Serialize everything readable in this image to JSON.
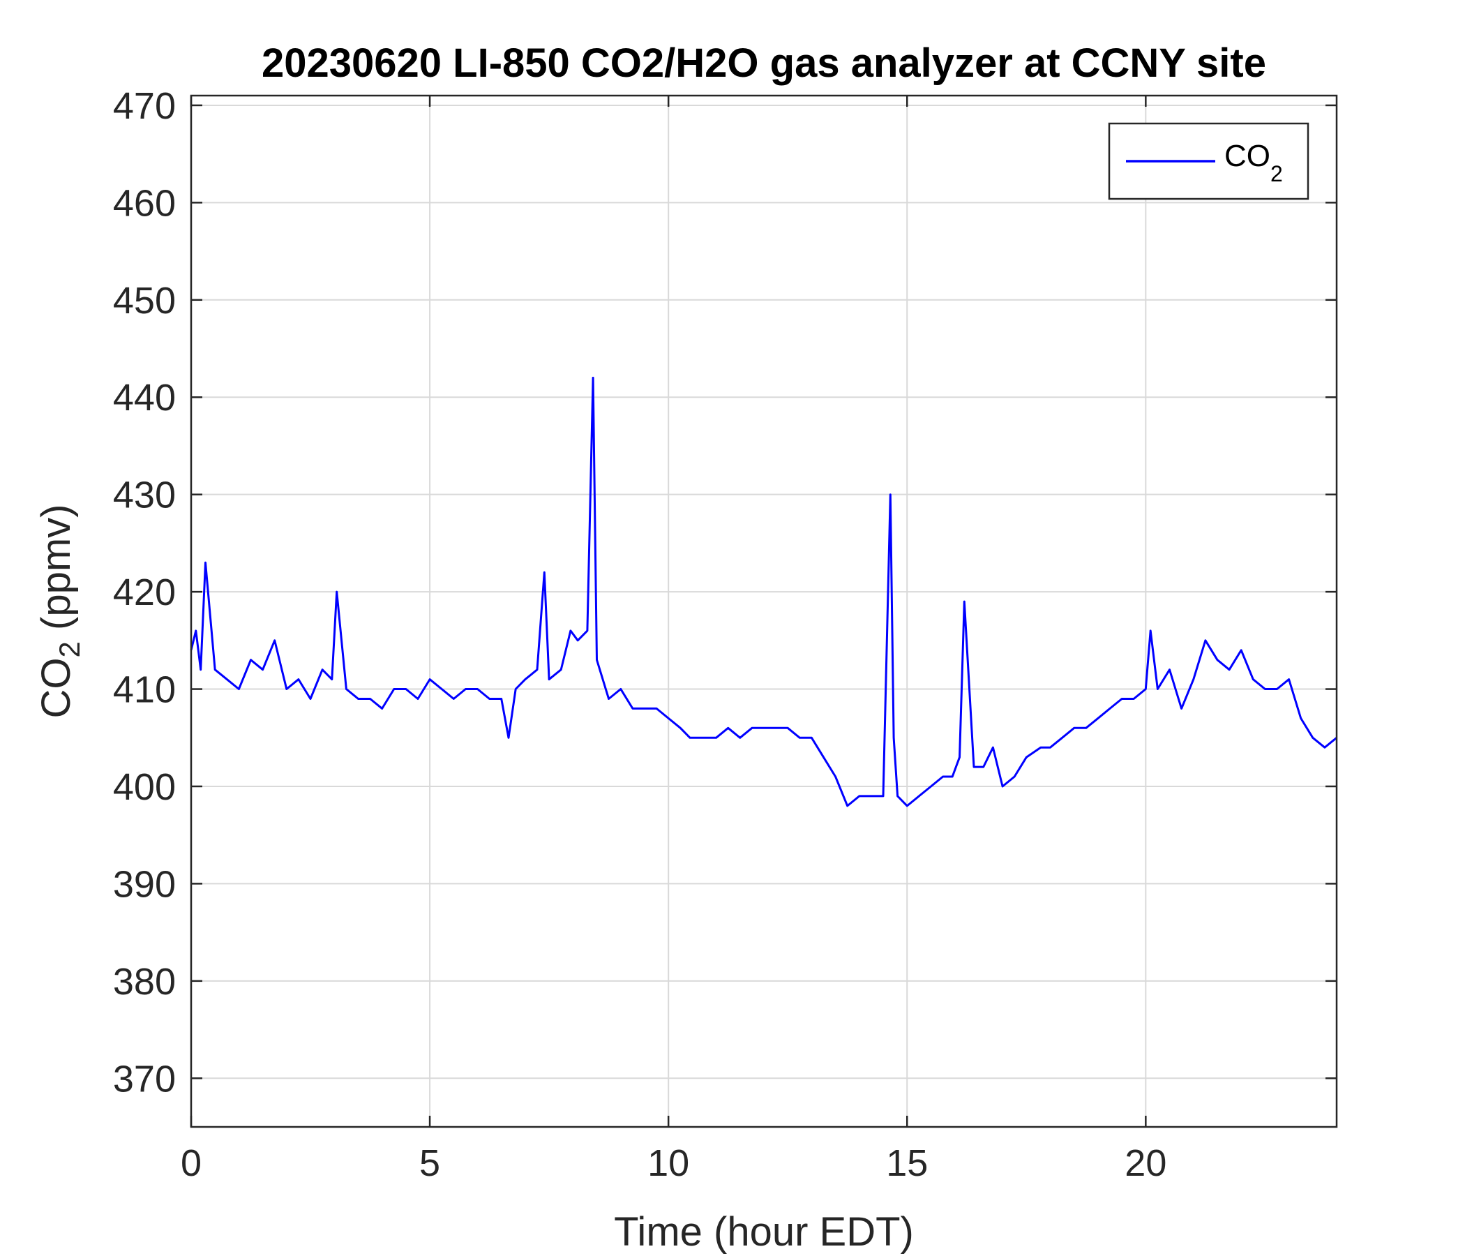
{
  "chart_data": {
    "type": "line",
    "title": "20230620 LI-850 CO2/H2O gas analyzer at CCNY site",
    "xlabel": "Time (hour EDT)",
    "ylabel": {
      "main": "CO",
      "sub": "2",
      "suffix": " (ppmv)"
    },
    "xlim": [
      0,
      24
    ],
    "ylim": [
      365,
      471
    ],
    "xticks": [
      0,
      5,
      10,
      15,
      20
    ],
    "yticks": [
      370,
      380,
      390,
      400,
      410,
      420,
      430,
      440,
      450,
      460,
      470
    ],
    "grid": true,
    "legend": {
      "position": "top-right"
    },
    "series": [
      {
        "name": {
          "main": "CO",
          "sub": "2"
        },
        "color": "#0000ff",
        "x": [
          0,
          0.1,
          0.2,
          0.3,
          0.5,
          0.75,
          1.0,
          1.25,
          1.5,
          1.75,
          2.0,
          2.25,
          2.5,
          2.75,
          2.95,
          3.05,
          3.25,
          3.5,
          3.75,
          4.0,
          4.25,
          4.5,
          4.75,
          5.0,
          5.25,
          5.5,
          5.75,
          6.0,
          6.25,
          6.5,
          6.65,
          6.8,
          7.0,
          7.25,
          7.4,
          7.5,
          7.75,
          7.95,
          8.1,
          8.3,
          8.42,
          8.5,
          8.75,
          9.0,
          9.25,
          9.5,
          9.75,
          10.0,
          10.25,
          10.45,
          10.7,
          11.0,
          11.25,
          11.5,
          11.75,
          12.0,
          12.25,
          12.5,
          12.75,
          13.0,
          13.25,
          13.5,
          13.75,
          14.0,
          14.25,
          14.5,
          14.65,
          14.72,
          14.8,
          15.0,
          15.25,
          15.5,
          15.75,
          15.95,
          16.1,
          16.2,
          16.4,
          16.6,
          16.8,
          17.0,
          17.25,
          17.5,
          17.8,
          18.0,
          18.25,
          18.5,
          18.75,
          19.0,
          19.25,
          19.5,
          19.75,
          20.0,
          20.1,
          20.25,
          20.5,
          20.75,
          21.0,
          21.25,
          21.5,
          21.75,
          22.0,
          22.25,
          22.5,
          22.75,
          23.0,
          23.25,
          23.5,
          23.75,
          24.0
        ],
        "y": [
          414,
          416,
          412,
          423,
          412,
          411,
          410,
          413,
          412,
          415,
          410,
          411,
          409,
          412,
          411,
          420,
          410,
          409,
          409,
          408,
          410,
          410,
          409,
          411,
          410,
          409,
          410,
          410,
          409,
          409,
          405,
          410,
          411,
          412,
          422,
          411,
          412,
          416,
          415,
          416,
          442,
          413,
          409,
          410,
          408,
          408,
          408,
          407,
          406,
          405,
          405,
          405,
          406,
          405,
          406,
          406,
          406,
          406,
          405,
          405,
          403,
          401,
          398,
          399,
          399,
          399,
          430,
          405,
          399,
          398,
          399,
          400,
          401,
          401,
          403,
          419,
          402,
          402,
          404,
          400,
          401,
          403,
          404,
          404,
          405,
          406,
          406,
          407,
          408,
          409,
          409,
          410,
          416,
          410,
          412,
          408,
          411,
          415,
          413,
          412,
          414,
          411,
          410,
          410,
          411,
          407,
          405,
          404,
          405
        ]
      }
    ]
  }
}
